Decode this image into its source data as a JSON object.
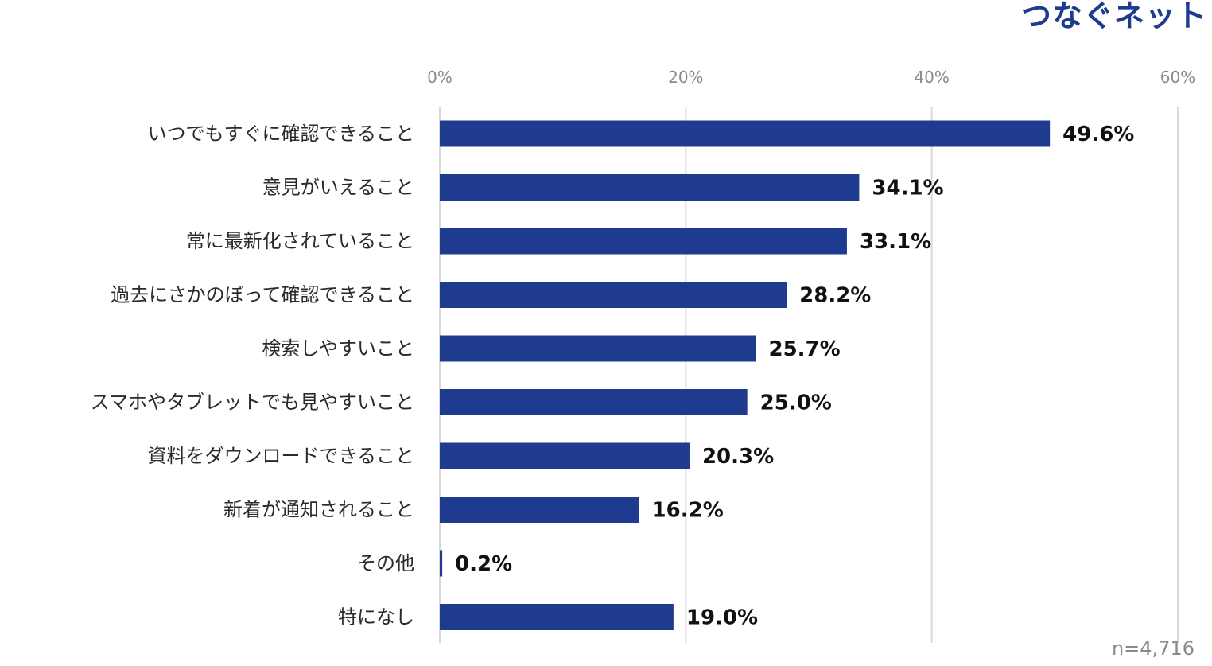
{
  "logo": {
    "text": "つなぐネット"
  },
  "sample_size": "n=4,716",
  "colors": {
    "bar": "#1f3b8f",
    "grid": "#d9d9d9",
    "logo": "#1f3b8f"
  },
  "chart_data": {
    "type": "bar",
    "orientation": "horizontal",
    "categories": [
      "いつでもすぐに確認できること",
      "意見がいえること",
      "常に最新化されていること",
      "過去にさかのぼって確認できること",
      "検索しやすいこと",
      "スマホやタブレットでも見やすいこと",
      "資料をダウンロードできること",
      "新着が通知されること",
      "その他",
      "特になし"
    ],
    "values": [
      49.6,
      34.1,
      33.1,
      28.2,
      25.7,
      25.0,
      20.3,
      16.2,
      0.2,
      19.0
    ],
    "value_labels": [
      "49.6%",
      "34.1%",
      "33.1%",
      "28.2%",
      "25.7%",
      "25.0%",
      "20.3%",
      "16.2%",
      "0.2%",
      "19.0%"
    ],
    "xlim": [
      0,
      60
    ],
    "xticks": [
      0,
      20,
      40,
      60
    ],
    "xtick_labels": [
      "0%",
      "20%",
      "40%",
      "60%"
    ],
    "axis_position": "top",
    "grid": true,
    "legend": "none"
  }
}
